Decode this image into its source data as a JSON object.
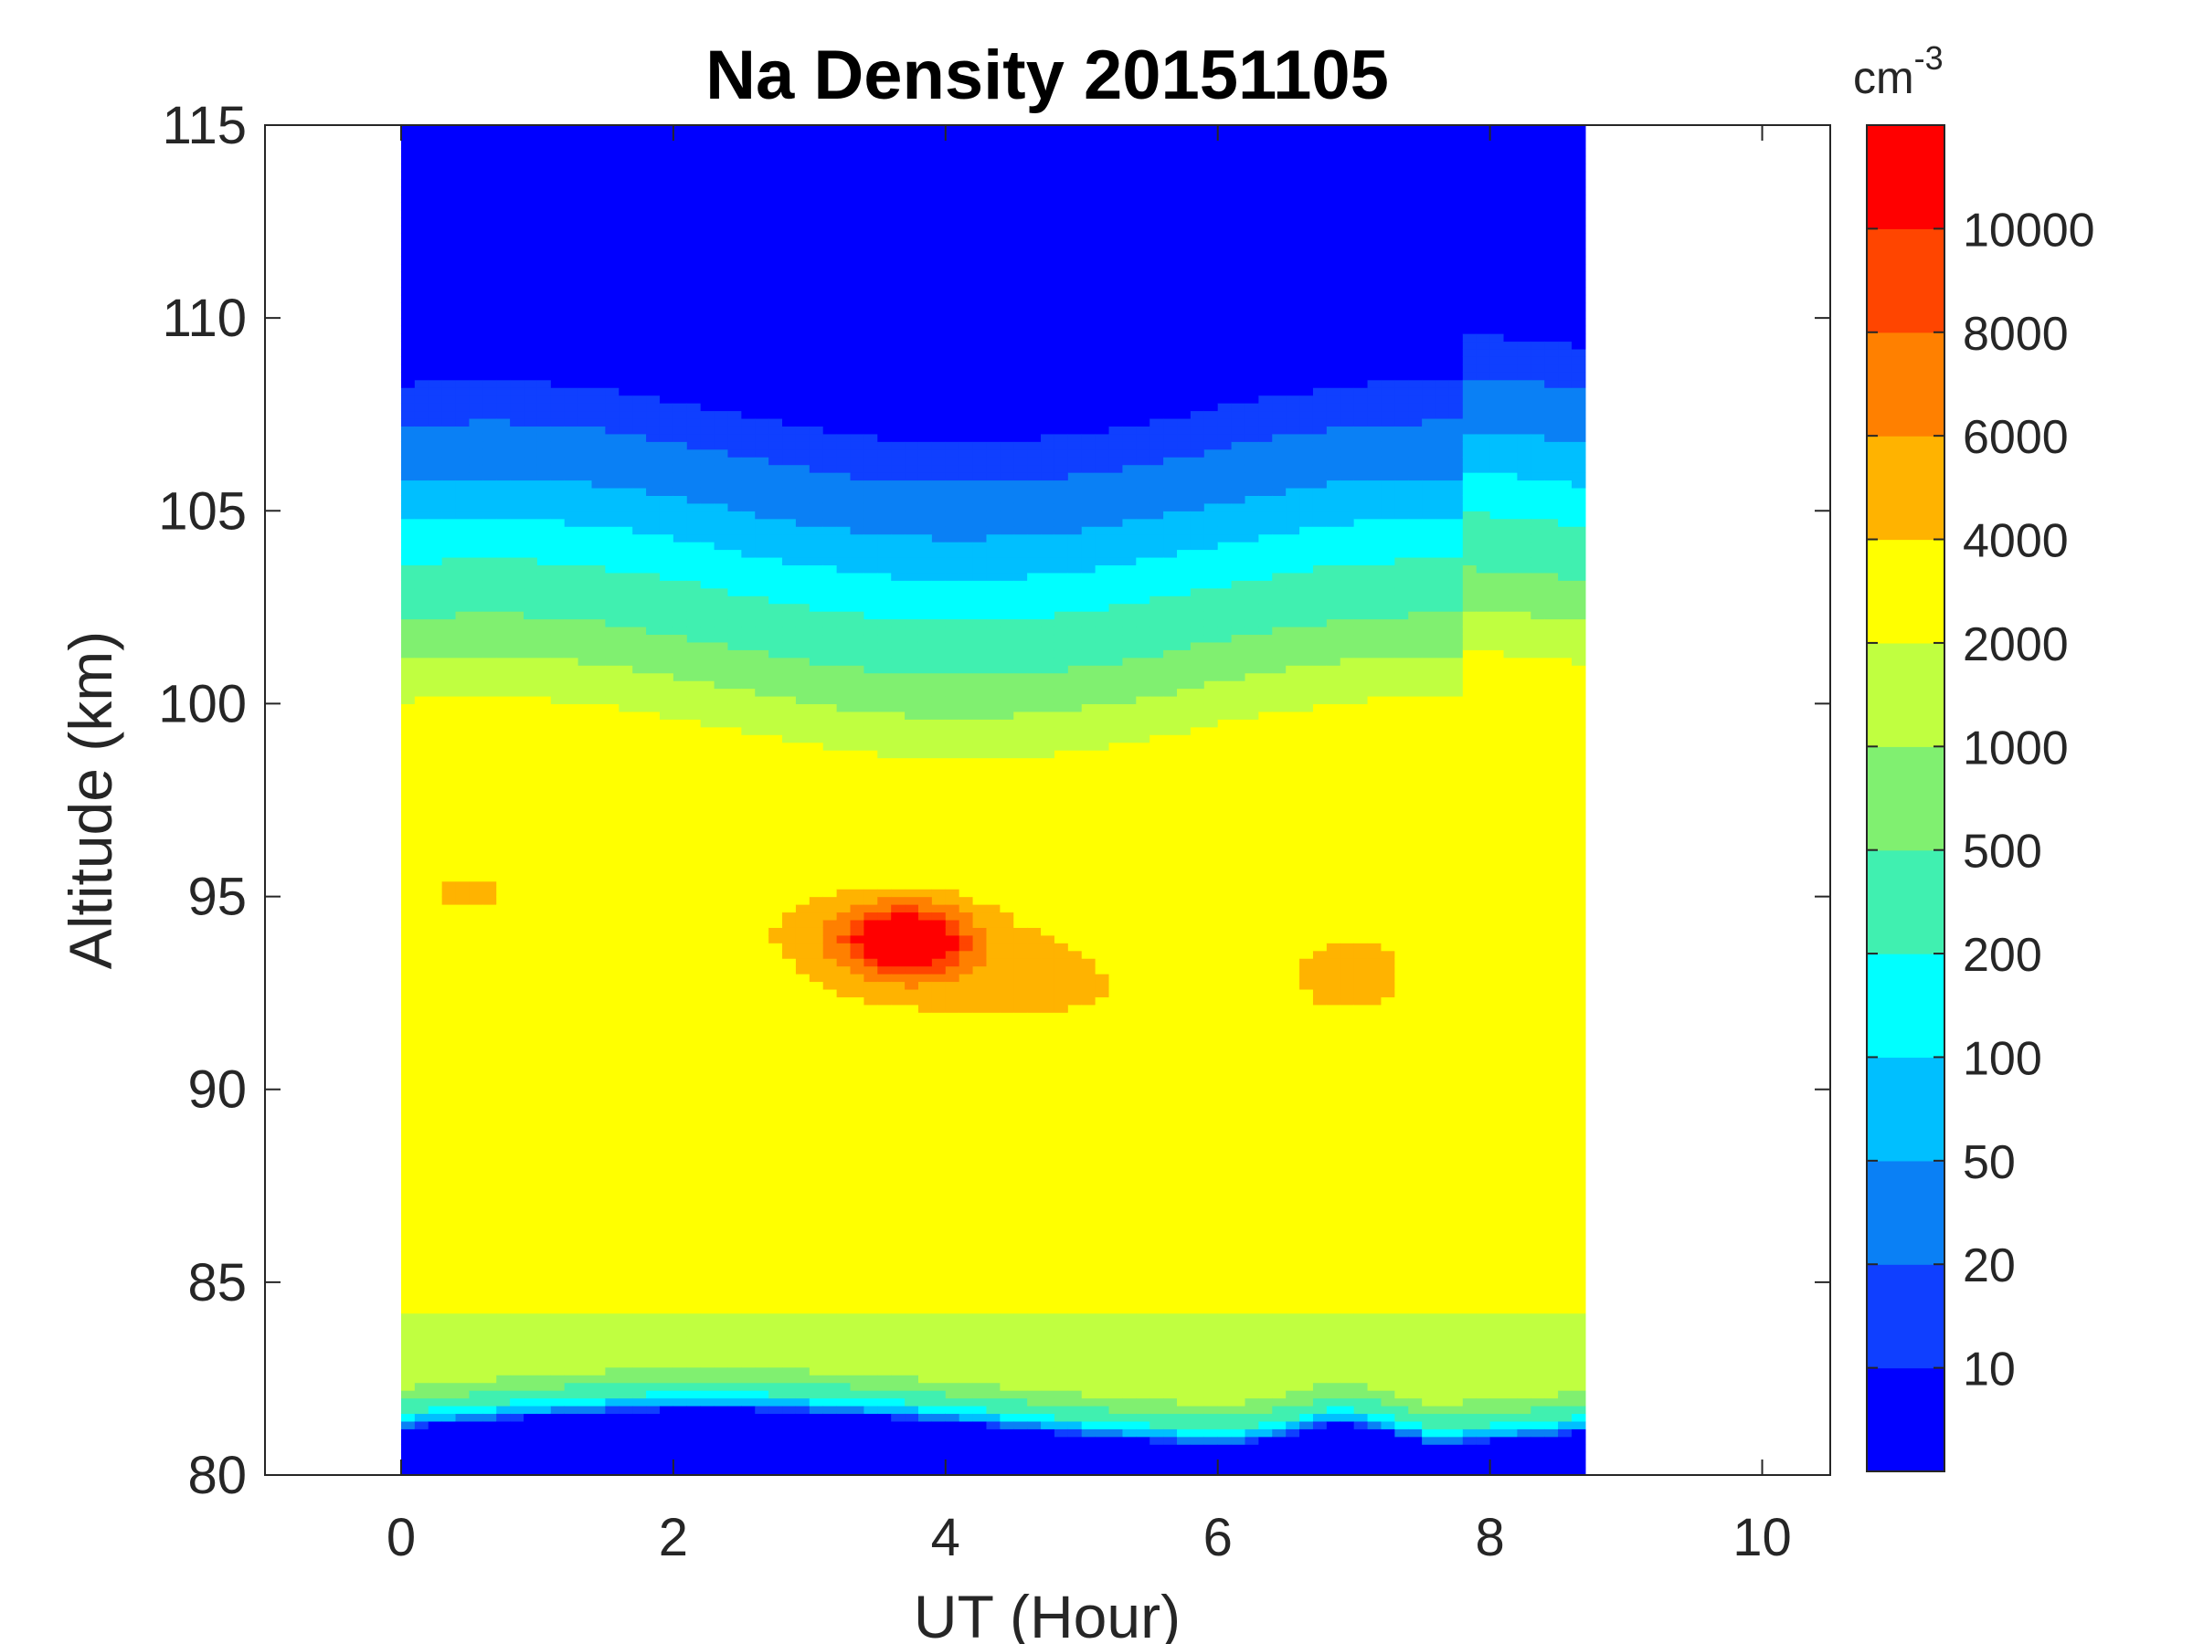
{
  "chart_data": {
    "type": "heatmap",
    "title": "Na Density 20151105",
    "xlabel": "UT (Hour)",
    "ylabel": "Altitude (km)",
    "xlim": [
      -1,
      10.5
    ],
    "ylim": [
      80,
      115
    ],
    "x_data_range": [
      0,
      8.7
    ],
    "x_ticks": [
      0,
      2,
      4,
      6,
      8,
      10
    ],
    "y_ticks": [
      80,
      85,
      90,
      95,
      100,
      105,
      110,
      115
    ],
    "colorbar": {
      "unit": "cm",
      "unit_exponent": "-3",
      "levels": [
        0,
        10,
        20,
        50,
        100,
        200,
        500,
        1000,
        2000,
        4000,
        6000,
        8000,
        10000
      ],
      "tick_labels": [
        "10",
        "20",
        "50",
        "100",
        "200",
        "500",
        "1000",
        "2000",
        "4000",
        "6000",
        "8000",
        "10000"
      ],
      "colors": [
        "#0000FF",
        "#0F3FFF",
        "#0A80F5",
        "#00BFFF",
        "#00FFFF",
        "#40F0B0",
        "#80F070",
        "#C0FF40",
        "#FFFF00",
        "#FFB300",
        "#FF8000",
        "#FF4500",
        "#FF0000"
      ]
    },
    "peak": {
      "x": 3.7,
      "y": 93.9,
      "value": 10000
    },
    "grid": false,
    "legend": "colorbar-right"
  }
}
